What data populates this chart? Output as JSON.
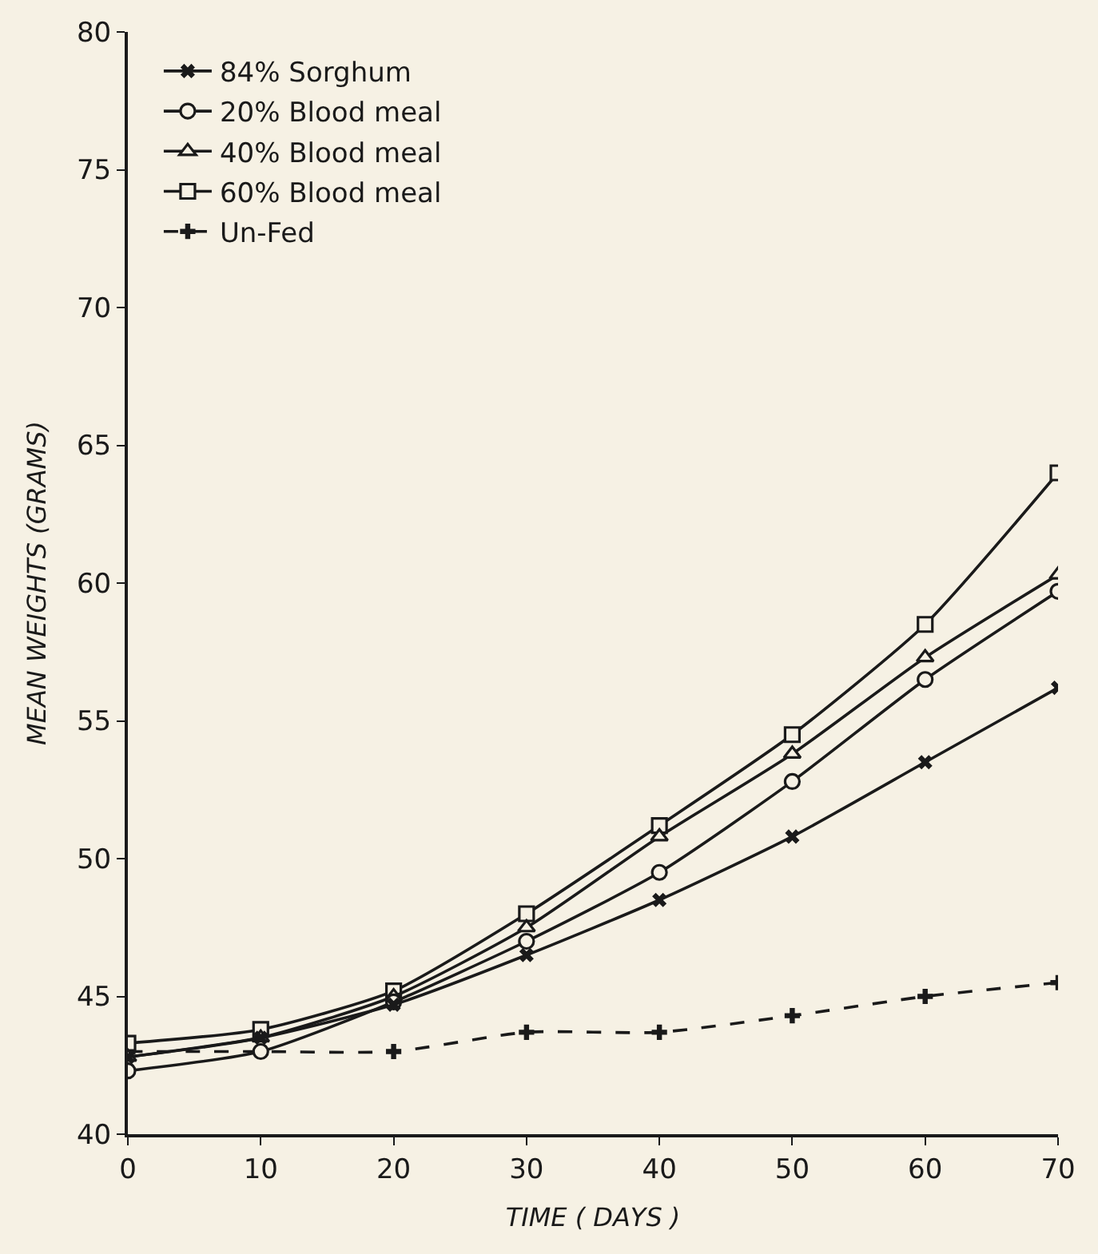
{
  "chart_data": {
    "type": "line",
    "xlabel": "TIME ( DAYS )",
    "ylabel": "MEAN WEIGHTS (GRAMS)",
    "x": [
      0,
      10,
      20,
      30,
      40,
      50,
      60,
      70
    ],
    "xlim": [
      0,
      70
    ],
    "xticks": [
      0,
      10,
      20,
      30,
      40,
      50,
      60,
      70
    ],
    "ylim": [
      40,
      80
    ],
    "yticks": [
      40,
      45,
      50,
      55,
      60,
      65,
      70,
      75,
      80
    ],
    "grid": false,
    "legend": "top left",
    "series": [
      {
        "name": "84% Sorghum",
        "color": "#1a1a1a",
        "marker": "cross",
        "line_style": "solid",
        "values": [
          42.8,
          43.5,
          44.7,
          46.5,
          48.5,
          50.8,
          53.5,
          56.2
        ]
      },
      {
        "name": "20% Blood meal",
        "color": "#1a1a1a",
        "marker": "circle",
        "line_style": "solid",
        "values": [
          42.3,
          43.0,
          44.8,
          47.0,
          49.5,
          52.8,
          56.5,
          59.7
        ]
      },
      {
        "name": "40% Blood meal",
        "color": "#1a1a1a",
        "marker": "triangle",
        "line_style": "solid",
        "values": [
          42.8,
          43.5,
          45.0,
          47.5,
          50.8,
          53.8,
          57.3,
          60.3
        ]
      },
      {
        "name": "60% Blood meal",
        "color": "#1a1a1a",
        "marker": "square",
        "line_style": "solid",
        "values": [
          43.3,
          43.8,
          45.2,
          48.0,
          51.2,
          54.5,
          58.5,
          64.0
        ]
      },
      {
        "name": "Un-Fed",
        "color": "#1a1a1a",
        "marker": "cross",
        "line_style": "dashed",
        "values": [
          43.0,
          43.0,
          43.0,
          43.7,
          43.7,
          44.3,
          45.0,
          45.5
        ]
      }
    ]
  }
}
